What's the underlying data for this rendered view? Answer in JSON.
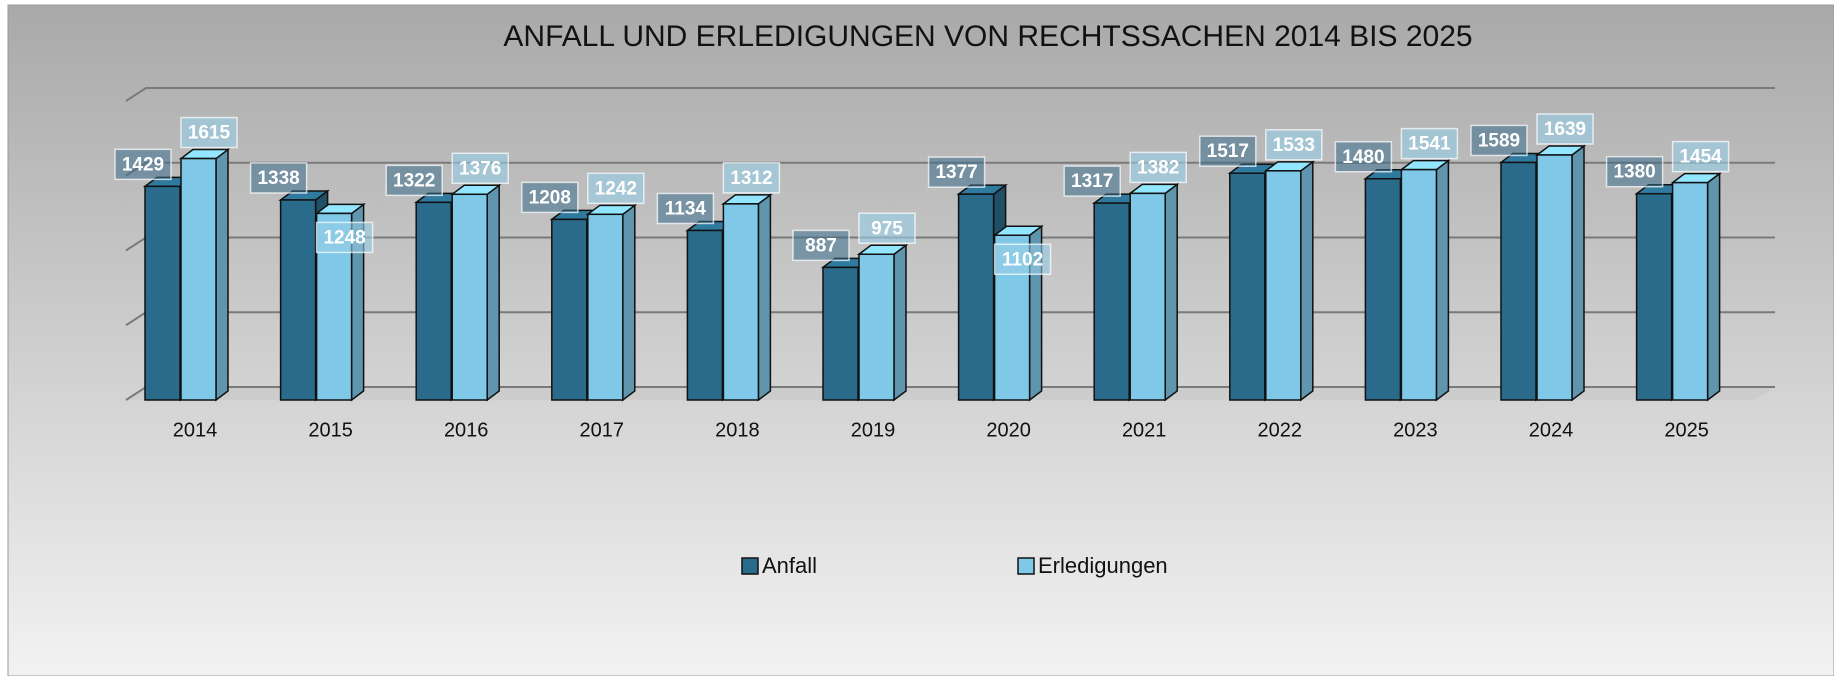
{
  "chart_data": {
    "type": "bar",
    "title": "ANFALL UND ERLEDIGUNGEN VON RECHTSSACHEN 2014 BIS 2025",
    "categories": [
      "2014",
      "2015",
      "2016",
      "2017",
      "2018",
      "2019",
      "2020",
      "2021",
      "2022",
      "2023",
      "2024",
      "2025"
    ],
    "series": [
      {
        "name": "Anfall",
        "color": "#2a6a8a",
        "values": [
          1429,
          1338,
          1322,
          1208,
          1134,
          887,
          1377,
          1317,
          1517,
          1480,
          1589,
          1380
        ]
      },
      {
        "name": "Erledigungen",
        "color": "#7fc8e8",
        "values": [
          1615,
          1248,
          1376,
          1242,
          1312,
          975,
          1102,
          1382,
          1533,
          1541,
          1639,
          1454
        ]
      }
    ],
    "ylim": [
      0,
      2000
    ],
    "yticks": [
      0,
      500,
      1000,
      1500,
      2000
    ],
    "grid": true,
    "legend": "bottom"
  }
}
